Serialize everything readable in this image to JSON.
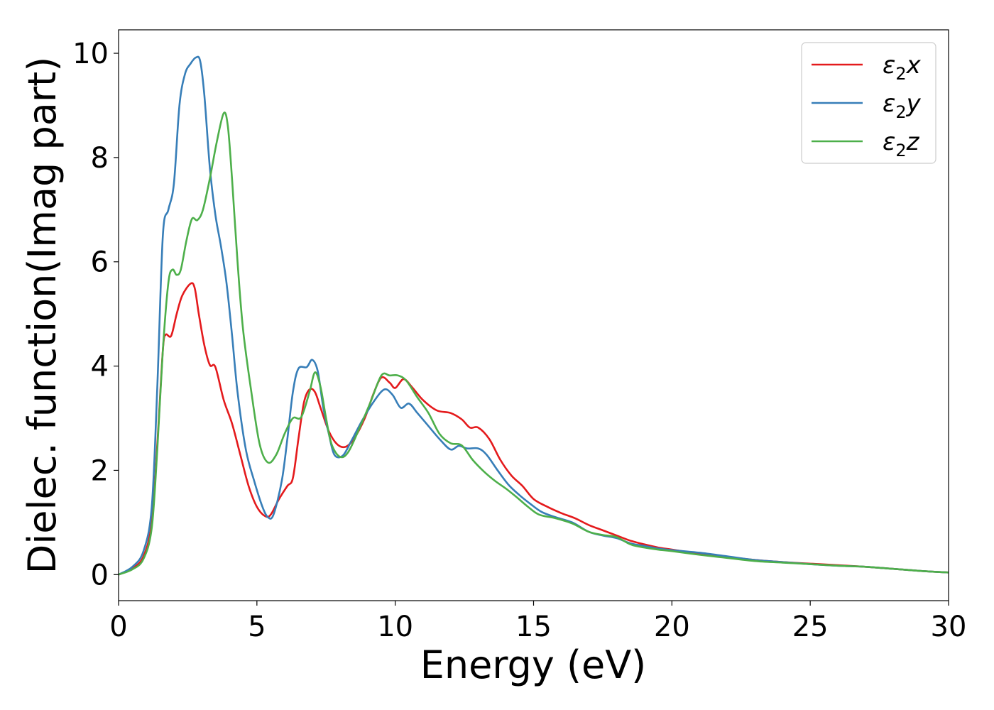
{
  "chart_data": {
    "type": "line",
    "title": "",
    "xlabel": "Energy (eV)",
    "ylabel": "Dielec. function(Imag part)",
    "xlim": [
      0,
      30
    ],
    "ylim": [
      -0.5,
      10.45
    ],
    "xticks": [
      0,
      5,
      10,
      15,
      20,
      25,
      30
    ],
    "yticks": [
      0,
      2,
      4,
      6,
      8,
      10
    ],
    "grid": false,
    "legend_position": "top-right",
    "series": [
      {
        "name_base": "ε",
        "name_sub": "2",
        "name_suffix": "x",
        "color": "#e41a1c",
        "points": [
          [
            0,
            0
          ],
          [
            0.5,
            0.12
          ],
          [
            0.9,
            0.35
          ],
          [
            1.2,
            1.0
          ],
          [
            1.4,
            2.5
          ],
          [
            1.6,
            4.3
          ],
          [
            1.7,
            4.6
          ],
          [
            1.9,
            4.58
          ],
          [
            2.1,
            5.0
          ],
          [
            2.3,
            5.35
          ],
          [
            2.6,
            5.58
          ],
          [
            2.75,
            5.5
          ],
          [
            2.9,
            5.0
          ],
          [
            3.1,
            4.4
          ],
          [
            3.3,
            4.02
          ],
          [
            3.5,
            3.98
          ],
          [
            3.8,
            3.35
          ],
          [
            4.1,
            2.9
          ],
          [
            4.4,
            2.3
          ],
          [
            4.7,
            1.7
          ],
          [
            5.0,
            1.3
          ],
          [
            5.3,
            1.12
          ],
          [
            5.5,
            1.15
          ],
          [
            5.8,
            1.45
          ],
          [
            6.1,
            1.7
          ],
          [
            6.3,
            1.85
          ],
          [
            6.5,
            2.6
          ],
          [
            6.7,
            3.3
          ],
          [
            6.9,
            3.55
          ],
          [
            7.1,
            3.5
          ],
          [
            7.3,
            3.2
          ],
          [
            7.6,
            2.75
          ],
          [
            7.9,
            2.5
          ],
          [
            8.2,
            2.45
          ],
          [
            8.5,
            2.6
          ],
          [
            8.9,
            3.0
          ],
          [
            9.2,
            3.45
          ],
          [
            9.5,
            3.78
          ],
          [
            9.8,
            3.68
          ],
          [
            10.0,
            3.58
          ],
          [
            10.3,
            3.75
          ],
          [
            10.6,
            3.6
          ],
          [
            11.0,
            3.35
          ],
          [
            11.5,
            3.15
          ],
          [
            12.0,
            3.1
          ],
          [
            12.4,
            2.98
          ],
          [
            12.7,
            2.82
          ],
          [
            13.0,
            2.82
          ],
          [
            13.4,
            2.6
          ],
          [
            13.8,
            2.2
          ],
          [
            14.2,
            1.9
          ],
          [
            14.6,
            1.7
          ],
          [
            15.0,
            1.45
          ],
          [
            15.5,
            1.3
          ],
          [
            16.0,
            1.18
          ],
          [
            16.5,
            1.08
          ],
          [
            17.0,
            0.95
          ],
          [
            17.5,
            0.85
          ],
          [
            18.0,
            0.75
          ],
          [
            18.5,
            0.65
          ],
          [
            19.0,
            0.58
          ],
          [
            19.5,
            0.52
          ],
          [
            20.0,
            0.48
          ],
          [
            21.0,
            0.4
          ],
          [
            22.0,
            0.34
          ],
          [
            23.0,
            0.28
          ],
          [
            24.0,
            0.24
          ],
          [
            25.0,
            0.21
          ],
          [
            26.0,
            0.18
          ],
          [
            27.0,
            0.15
          ],
          [
            28.0,
            0.11
          ],
          [
            29.0,
            0.07
          ],
          [
            30.0,
            0.04
          ]
        ]
      },
      {
        "name_base": "ε",
        "name_sub": "2",
        "name_suffix": "y",
        "color": "#377eb8",
        "points": [
          [
            0,
            0
          ],
          [
            0.5,
            0.15
          ],
          [
            0.9,
            0.45
          ],
          [
            1.2,
            1.3
          ],
          [
            1.4,
            3.6
          ],
          [
            1.6,
            6.5
          ],
          [
            1.8,
            7.0
          ],
          [
            2.0,
            7.5
          ],
          [
            2.2,
            9.0
          ],
          [
            2.4,
            9.6
          ],
          [
            2.6,
            9.8
          ],
          [
            2.8,
            9.92
          ],
          [
            2.95,
            9.85
          ],
          [
            3.1,
            9.2
          ],
          [
            3.3,
            7.8
          ],
          [
            3.5,
            6.9
          ],
          [
            3.7,
            6.3
          ],
          [
            3.9,
            5.6
          ],
          [
            4.1,
            4.6
          ],
          [
            4.3,
            3.5
          ],
          [
            4.6,
            2.4
          ],
          [
            4.9,
            1.8
          ],
          [
            5.2,
            1.3
          ],
          [
            5.4,
            1.1
          ],
          [
            5.6,
            1.15
          ],
          [
            5.9,
            1.8
          ],
          [
            6.1,
            2.6
          ],
          [
            6.3,
            3.5
          ],
          [
            6.5,
            3.95
          ],
          [
            6.8,
            3.98
          ],
          [
            7.0,
            4.12
          ],
          [
            7.2,
            3.9
          ],
          [
            7.4,
            3.2
          ],
          [
            7.6,
            2.7
          ],
          [
            7.8,
            2.3
          ],
          [
            8.1,
            2.28
          ],
          [
            8.4,
            2.55
          ],
          [
            8.8,
            2.95
          ],
          [
            9.2,
            3.3
          ],
          [
            9.6,
            3.55
          ],
          [
            9.9,
            3.45
          ],
          [
            10.2,
            3.2
          ],
          [
            10.5,
            3.28
          ],
          [
            10.8,
            3.1
          ],
          [
            11.2,
            2.85
          ],
          [
            11.6,
            2.6
          ],
          [
            12.0,
            2.4
          ],
          [
            12.3,
            2.47
          ],
          [
            12.6,
            2.42
          ],
          [
            13.0,
            2.42
          ],
          [
            13.3,
            2.3
          ],
          [
            13.7,
            2.0
          ],
          [
            14.1,
            1.72
          ],
          [
            14.5,
            1.52
          ],
          [
            14.9,
            1.35
          ],
          [
            15.3,
            1.2
          ],
          [
            15.8,
            1.1
          ],
          [
            16.4,
            1.0
          ],
          [
            17.0,
            0.82
          ],
          [
            17.5,
            0.75
          ],
          [
            18.0,
            0.7
          ],
          [
            18.5,
            0.6
          ],
          [
            19.0,
            0.55
          ],
          [
            19.5,
            0.5
          ],
          [
            20.0,
            0.47
          ],
          [
            21.0,
            0.42
          ],
          [
            22.0,
            0.35
          ],
          [
            23.0,
            0.28
          ],
          [
            24.0,
            0.24
          ],
          [
            25.0,
            0.2
          ],
          [
            26.0,
            0.17
          ],
          [
            27.0,
            0.15
          ],
          [
            28.0,
            0.11
          ],
          [
            29.0,
            0.07
          ],
          [
            30.0,
            0.04
          ]
        ]
      },
      {
        "name_base": "ε",
        "name_sub": "2",
        "name_suffix": "z",
        "color": "#4daf4a",
        "points": [
          [
            0,
            0
          ],
          [
            0.5,
            0.1
          ],
          [
            0.9,
            0.3
          ],
          [
            1.2,
            0.9
          ],
          [
            1.4,
            2.4
          ],
          [
            1.6,
            4.3
          ],
          [
            1.8,
            5.6
          ],
          [
            1.95,
            5.85
          ],
          [
            2.1,
            5.75
          ],
          [
            2.25,
            5.85
          ],
          [
            2.45,
            6.4
          ],
          [
            2.65,
            6.82
          ],
          [
            2.85,
            6.8
          ],
          [
            3.05,
            7.0
          ],
          [
            3.3,
            7.6
          ],
          [
            3.55,
            8.3
          ],
          [
            3.8,
            8.85
          ],
          [
            3.95,
            8.6
          ],
          [
            4.1,
            7.6
          ],
          [
            4.3,
            6.0
          ],
          [
            4.5,
            4.7
          ],
          [
            4.8,
            3.5
          ],
          [
            5.1,
            2.5
          ],
          [
            5.4,
            2.15
          ],
          [
            5.7,
            2.3
          ],
          [
            6.0,
            2.7
          ],
          [
            6.3,
            3.0
          ],
          [
            6.6,
            3.02
          ],
          [
            6.9,
            3.5
          ],
          [
            7.1,
            3.88
          ],
          [
            7.3,
            3.6
          ],
          [
            7.5,
            3.0
          ],
          [
            7.7,
            2.5
          ],
          [
            8.0,
            2.26
          ],
          [
            8.3,
            2.35
          ],
          [
            8.7,
            2.8
          ],
          [
            9.1,
            3.3
          ],
          [
            9.5,
            3.82
          ],
          [
            9.8,
            3.82
          ],
          [
            10.1,
            3.82
          ],
          [
            10.4,
            3.72
          ],
          [
            10.8,
            3.4
          ],
          [
            11.2,
            3.1
          ],
          [
            11.6,
            2.7
          ],
          [
            12.0,
            2.52
          ],
          [
            12.4,
            2.48
          ],
          [
            12.8,
            2.2
          ],
          [
            13.2,
            1.98
          ],
          [
            13.6,
            1.8
          ],
          [
            14.0,
            1.65
          ],
          [
            14.4,
            1.48
          ],
          [
            14.8,
            1.3
          ],
          [
            15.2,
            1.15
          ],
          [
            15.8,
            1.08
          ],
          [
            16.4,
            0.98
          ],
          [
            17.0,
            0.82
          ],
          [
            17.5,
            0.76
          ],
          [
            18.0,
            0.72
          ],
          [
            18.5,
            0.58
          ],
          [
            19.0,
            0.52
          ],
          [
            19.5,
            0.48
          ],
          [
            20.0,
            0.45
          ],
          [
            21.0,
            0.38
          ],
          [
            22.0,
            0.32
          ],
          [
            23.0,
            0.26
          ],
          [
            24.0,
            0.23
          ],
          [
            25.0,
            0.2
          ],
          [
            26.0,
            0.17
          ],
          [
            27.0,
            0.15
          ],
          [
            28.0,
            0.11
          ],
          [
            29.0,
            0.07
          ],
          [
            30.0,
            0.04
          ]
        ]
      }
    ]
  }
}
